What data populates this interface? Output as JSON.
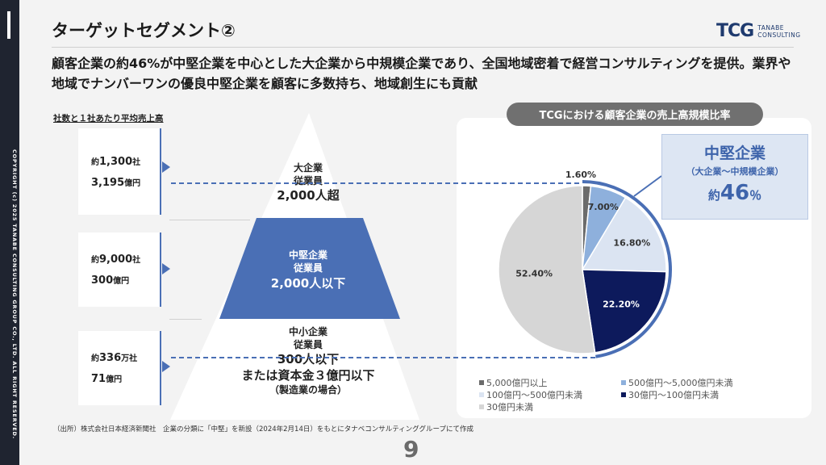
{
  "slide": {
    "title": "ターゲットセグメント②",
    "lead": "顧客企業の約46%が中堅企業を中心とした大企業から中規模企業であり、全国地域密着で経営コンサルティングを提供。業界や地域でナンバーワンの優良中堅企業を顧客に多数持ち、地域創生にも貢献",
    "copyright": "COPYRIGHT (c) 2025 TANABE CONSULTING GROUP CO., LTD. ALL RIGHT RESERVED.",
    "logo_mark": "TCG",
    "logo_line1": "TANABE",
    "logo_line2": "CONSULTING",
    "source": "（出所）株式会社日本経済新聞社　企業の分類に「中堅」を新設（2024年2月14日）をもとにタナベコンサルティンググループにて作成",
    "page_number": "9"
  },
  "left": {
    "label": "社数と１社あたり平均売上高",
    "stats": [
      {
        "count_prefix": "約",
        "count": "1,300",
        "count_unit": "社",
        "sales": "3,195",
        "sales_unit": "億円"
      },
      {
        "count_prefix": "約",
        "count": "9,000",
        "count_unit": "社",
        "sales": "300",
        "sales_unit": "億円"
      },
      {
        "count_prefix": "約",
        "count": "336",
        "count_unit": "万社",
        "sales": "71",
        "sales_unit": "億円"
      }
    ]
  },
  "pyramid": {
    "top": {
      "line1": "大企業",
      "line2": "従業員",
      "line3": "2,000人超"
    },
    "mid": {
      "line1": "中堅企業",
      "line2": "従業員",
      "line3": "2,000人以下"
    },
    "bottom": {
      "line1": "中小企業",
      "line2": "従業員",
      "line3": "300人以下",
      "line4": "または資本金３億円以下",
      "line5": "（製造業の場合）"
    }
  },
  "pie": {
    "header": "TCGにおける顧客企業の売上高規模比率",
    "callout": {
      "title": "中堅企業",
      "sub": "（大企業～中規模企業）",
      "prefix": "約",
      "value": "46",
      "unit": "％"
    },
    "legend": [
      {
        "label": "5,000億円以上",
        "color": "#6b6b6b"
      },
      {
        "label": "500億円～5,000億円未満",
        "color": "#8eb0dc"
      },
      {
        "label": "100億円～500億円未満",
        "color": "#dbe4f2"
      },
      {
        "label": "30億円～100億円未満",
        "color": "#0d1a5c"
      },
      {
        "label": "30億円未満",
        "color": "#d6d6d6"
      }
    ]
  },
  "chart_data": {
    "type": "pie",
    "title": "TCGにおける顧客企業の売上高規模比率",
    "categories": [
      "5,000億円以上",
      "500億円～5,000億円未満",
      "100億円～500億円未満",
      "30億円～100億円未満",
      "30億円未満"
    ],
    "values": [
      1.6,
      7.0,
      16.8,
      22.2,
      52.4
    ],
    "labels": [
      "1.60%",
      "7.00%",
      "16.80%",
      "22.20%",
      "52.40%"
    ],
    "colors": [
      "#6b6b6b",
      "#8eb0dc",
      "#dbe4f2",
      "#0d1a5c",
      "#d6d6d6"
    ],
    "label_colors": [
      "#333333",
      "#333333",
      "#333333",
      "#ffffff",
      "#333333"
    ],
    "legend_position": "bottom"
  }
}
